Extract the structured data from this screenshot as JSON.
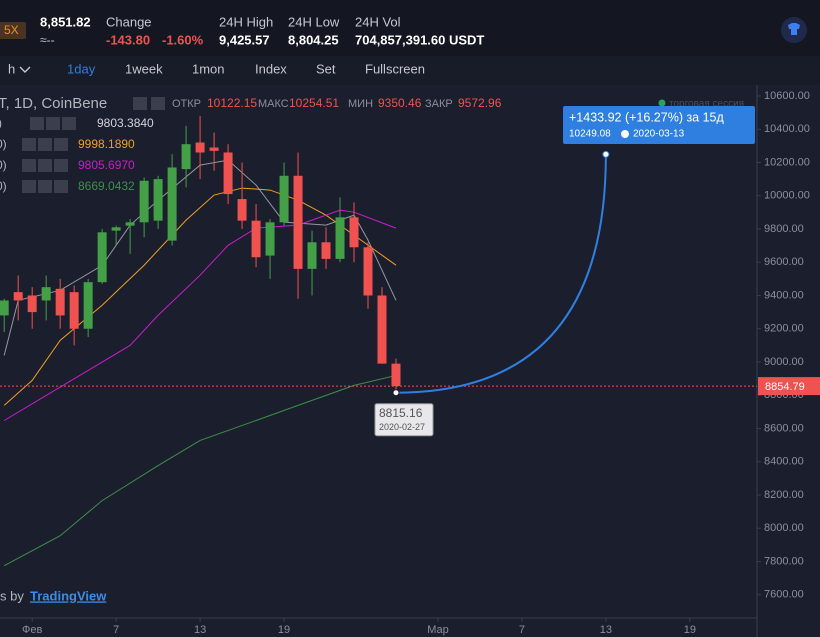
{
  "header": {
    "leverage": "5X",
    "price": "8,851.82",
    "approx": "≈--",
    "change_label": "Change",
    "change": "-143.80",
    "change_pct": "-1.60%",
    "high_label": "24H High",
    "high": "9,425.57",
    "low_label": "24H Low",
    "low": "8,804.25",
    "vol_label": "24H Vol",
    "vol": "704,857,391.60 USDT"
  },
  "toolbar": {
    "items": [
      "h",
      "1day",
      "1week",
      "1mon",
      "Index",
      "Set",
      "Fullscreen"
    ]
  },
  "chart_data": {
    "type": "candlestick",
    "symbol": "T, 1D, CoinBene",
    "session": "торговая сессия",
    "ohlc_legend": [
      {
        "label": "ОТКР",
        "value": 10122.15
      },
      {
        "label": "МАКС",
        "value": 10254.51
      },
      {
        "label": "МИН",
        "value": 9350.46
      },
      {
        "label": "ЗАКР",
        "value": 9572.96
      }
    ],
    "watermark": {
      "prefix": "s by ",
      "brand": "TradingView"
    },
    "up_color": "#43a047",
    "down_color": "#f0524f",
    "x": [
      -1,
      0,
      1,
      2,
      3,
      4,
      5,
      6,
      7,
      8,
      9,
      10,
      11,
      12,
      13,
      14,
      15,
      16,
      17,
      18,
      19,
      20,
      21,
      22,
      23,
      24,
      25,
      26,
      27
    ],
    "open": [
      9280,
      9420,
      9400,
      9370,
      9440,
      9420,
      9200,
      9480,
      9790,
      9820,
      9840,
      9850,
      9730,
      10160,
      10320,
      10290,
      10260,
      9980,
      9850,
      9640,
      9840,
      10120,
      9560,
      9720,
      9620,
      9870,
      9690,
      9400,
      8990
    ],
    "high": [
      9380,
      9520,
      9450,
      9520,
      9500,
      9460,
      9500,
      9800,
      9820,
      9860,
      10110,
      10120,
      10250,
      10420,
      10480,
      10380,
      10310,
      10200,
      9950,
      9860,
      10200,
      10260,
      9790,
      9810,
      9990,
      9960,
      9720,
      9450,
      9020
    ],
    "low": [
      9180,
      9250,
      9200,
      9250,
      9200,
      9100,
      9150,
      9470,
      9700,
      9650,
      9750,
      9800,
      9700,
      10050,
      10100,
      10150,
      9950,
      9800,
      9570,
      9500,
      9820,
      9380,
      9400,
      9560,
      9600,
      9600,
      9320,
      8990,
      8815.16
    ],
    "close": [
      9370,
      9370,
      9300,
      9450,
      9280,
      9200,
      9480,
      9780,
      9810,
      9840,
      10090,
      10100,
      10170,
      10310,
      10260,
      10270,
      10010,
      9850,
      9630,
      9840,
      10120,
      9560,
      9720,
      9620,
      9870,
      9690,
      9400,
      8990,
      8854.79
    ],
    "series": [
      {
        "legend_prefix": ")",
        "legend_value": "9803.3840",
        "color": "#9598a1",
        "x": [
          -1,
          0,
          3,
          6,
          8,
          10,
          13,
          15,
          17,
          19,
          22,
          24,
          25,
          27
        ],
        "values": [
          9040,
          9371,
          9431,
          9581,
          9823,
          9973,
          10184,
          10214,
          10064,
          9841,
          9823,
          9883,
          9733,
          9371
        ]
      },
      {
        "legend_prefix": "0)",
        "legend_value": "9998.1890",
        "color": "#f0a020",
        "x": [
          -1,
          1,
          3,
          6,
          9,
          12,
          14,
          16,
          18,
          20,
          22,
          24,
          27
        ],
        "values": [
          8739,
          8889,
          9130,
          9341,
          9582,
          9853,
          10004,
          10046,
          10034,
          9973,
          9883,
          9763,
          9582
        ]
      },
      {
        "legend_prefix": "0)",
        "legend_value": "9805.6970",
        "color": "#c81ec8",
        "x": [
          -1,
          2,
          5,
          8,
          10,
          13,
          15,
          17,
          20,
          23,
          24,
          27
        ],
        "values": [
          8648,
          8799,
          8949,
          9100,
          9281,
          9522,
          9702,
          9805,
          9823,
          9913,
          9901,
          9805
        ]
      },
      {
        "legend_prefix": "0)",
        "legend_value": "8669.0432",
        "color": "#3f8f4a",
        "x": [
          -1,
          3,
          6,
          10,
          13,
          17,
          20,
          24,
          27
        ],
        "values": [
          7775,
          7955,
          8166,
          8377,
          8528,
          8648,
          8739,
          8859,
          8919
        ]
      }
    ],
    "last_price": 8854.79,
    "last_price_color": "#f0524f",
    "projection": {
      "x": [
        27,
        42
      ],
      "values": [
        8815.16,
        10249.08
      ],
      "change_label": "+1433.92 (+16.27%) за 15д",
      "start_date": "2020-02-27",
      "end_date": "2020-03-13",
      "color": "#2f7fe0"
    },
    "xlim": [
      -1.3,
      52.8
    ],
    "xticks": [
      {
        "value": 1,
        "label": "Фев"
      },
      7,
      13,
      19,
      {
        "value": 30,
        "label": "Мар"
      },
      {
        "value": 36,
        "label": "7"
      },
      {
        "value": 42,
        "label": "13"
      },
      {
        "value": 48,
        "label": "19"
      }
    ],
    "ylim": [
      7460,
      10666
    ],
    "yticks": [
      {
        "value": 10600,
        "label": "10600.00"
      },
      {
        "value": 10400,
        "label": "10400.00"
      },
      {
        "value": 10200,
        "label": "10200.00"
      },
      {
        "value": 10000,
        "label": "10000.00"
      },
      {
        "value": 9800,
        "label": "9800.00"
      },
      {
        "value": 9600,
        "label": "9600.00"
      },
      {
        "value": 9400,
        "label": "9400.00"
      },
      {
        "value": 9200,
        "label": "9200.00"
      },
      {
        "value": 9000,
        "label": "9000.00"
      },
      {
        "value": 8800,
        "label": "8800.00"
      },
      {
        "value": 8600,
        "label": "8600.00"
      },
      {
        "value": 8400,
        "label": "8400.00"
      },
      {
        "value": 8200,
        "label": "8200.00"
      },
      {
        "value": 8000,
        "label": "8000.00"
      },
      {
        "value": 7800,
        "label": "7800.00"
      },
      {
        "value": 7600,
        "label": "7600.00"
      }
    ]
  }
}
